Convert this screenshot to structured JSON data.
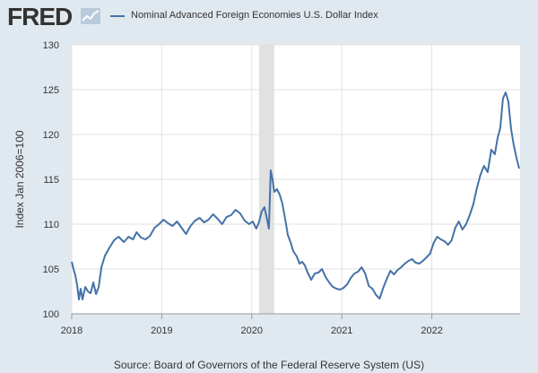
{
  "header": {
    "logo_text": "FRED",
    "logo_icon": "trend-line-icon",
    "legend_label": "Nominal Advanced Foreign Economies U.S. Dollar Index"
  },
  "footer": {
    "source": "Source: Board of Governors of the Federal Reserve System (US)"
  },
  "colors": {
    "series": "#4572a7",
    "background": "#e1e9f0",
    "plot_bg": "#ffffff",
    "grid": "#e1e1e1",
    "recession": "#e1e1e1"
  },
  "chart_data": {
    "type": "line",
    "title": "Nominal Advanced Foreign Economies U.S. Dollar Index",
    "xlabel": "",
    "ylabel": "Index Jan 2006=100",
    "xlim": [
      2018.0,
      2022.98
    ],
    "ylim": [
      100,
      130
    ],
    "yticks": [
      100,
      105,
      110,
      115,
      120,
      125,
      130
    ],
    "xticks": [
      {
        "value": 2018.0,
        "label": "2018"
      },
      {
        "value": 2019.0,
        "label": "2019"
      },
      {
        "value": 2020.0,
        "label": "2020"
      },
      {
        "value": 2021.0,
        "label": "2021"
      },
      {
        "value": 2022.0,
        "label": "2022"
      }
    ],
    "grid": true,
    "recessions": [
      {
        "start": 2020.08,
        "end": 2020.25
      }
    ],
    "series": [
      {
        "name": "Nominal Advanced Foreign Economies U.S. Dollar Index",
        "x": [
          2018.0,
          2018.02,
          2018.04,
          2018.06,
          2018.08,
          2018.1,
          2018.12,
          2018.15,
          2018.18,
          2018.21,
          2018.24,
          2018.27,
          2018.3,
          2018.33,
          2018.37,
          2018.42,
          2018.47,
          2018.52,
          2018.58,
          2018.63,
          2018.68,
          2018.72,
          2018.77,
          2018.82,
          2018.87,
          2018.92,
          2018.97,
          2019.02,
          2019.07,
          2019.12,
          2019.17,
          2019.22,
          2019.27,
          2019.32,
          2019.37,
          2019.42,
          2019.47,
          2019.52,
          2019.57,
          2019.62,
          2019.67,
          2019.72,
          2019.77,
          2019.82,
          2019.87,
          2019.92,
          2019.97,
          2020.01,
          2020.05,
          2020.08,
          2020.11,
          2020.14,
          2020.17,
          2020.19,
          2020.21,
          2020.23,
          2020.25,
          2020.28,
          2020.31,
          2020.34,
          2020.37,
          2020.4,
          2020.43,
          2020.46,
          2020.5,
          2020.53,
          2020.56,
          2020.59,
          2020.62,
          2020.66,
          2020.7,
          2020.74,
          2020.78,
          2020.82,
          2020.86,
          2020.9,
          2020.94,
          2020.98,
          2021.02,
          2021.06,
          2021.1,
          2021.14,
          2021.18,
          2021.22,
          2021.26,
          2021.3,
          2021.34,
          2021.38,
          2021.42,
          2021.46,
          2021.5,
          2021.54,
          2021.58,
          2021.62,
          2021.66,
          2021.7,
          2021.74,
          2021.78,
          2021.82,
          2021.86,
          2021.9,
          2021.94,
          2021.98,
          2022.02,
          2022.06,
          2022.1,
          2022.14,
          2022.18,
          2022.22,
          2022.26,
          2022.3,
          2022.34,
          2022.38,
          2022.42,
          2022.46,
          2022.5,
          2022.54,
          2022.58,
          2022.62,
          2022.66,
          2022.7,
          2022.73,
          2022.76,
          2022.79,
          2022.82,
          2022.85,
          2022.88,
          2022.91,
          2022.94,
          2022.97
        ],
        "values": [
          105.8,
          105.0,
          104.3,
          103.2,
          101.6,
          102.8,
          101.6,
          103.0,
          102.5,
          102.3,
          103.5,
          102.2,
          103.0,
          105.2,
          106.5,
          107.4,
          108.2,
          108.6,
          108.0,
          108.6,
          108.3,
          109.1,
          108.5,
          108.3,
          108.7,
          109.6,
          110.0,
          110.5,
          110.1,
          109.8,
          110.3,
          109.6,
          108.9,
          109.8,
          110.4,
          110.7,
          110.2,
          110.5,
          111.1,
          110.6,
          110.0,
          110.8,
          111.0,
          111.6,
          111.2,
          110.4,
          110.0,
          110.3,
          109.5,
          110.2,
          111.4,
          111.9,
          110.5,
          109.5,
          116.0,
          115.0,
          113.6,
          113.9,
          113.3,
          112.3,
          110.6,
          108.8,
          108.0,
          107.0,
          106.4,
          105.6,
          105.8,
          105.4,
          104.6,
          103.8,
          104.5,
          104.6,
          105.0,
          104.1,
          103.5,
          103.0,
          102.8,
          102.7,
          102.9,
          103.3,
          104.0,
          104.5,
          104.7,
          105.2,
          104.5,
          103.1,
          102.8,
          102.1,
          101.7,
          102.9,
          103.9,
          104.8,
          104.4,
          104.9,
          105.2,
          105.6,
          105.9,
          106.1,
          105.7,
          105.6,
          105.9,
          106.3,
          106.7,
          107.9,
          108.6,
          108.3,
          108.1,
          107.7,
          108.2,
          109.6,
          110.3,
          109.4,
          110.0,
          111.0,
          112.2,
          114.0,
          115.5,
          116.5,
          115.8,
          118.3,
          117.8,
          119.6,
          120.7,
          124.0,
          124.7,
          123.7,
          120.6,
          118.8,
          117.4,
          116.2
        ]
      }
    ]
  }
}
